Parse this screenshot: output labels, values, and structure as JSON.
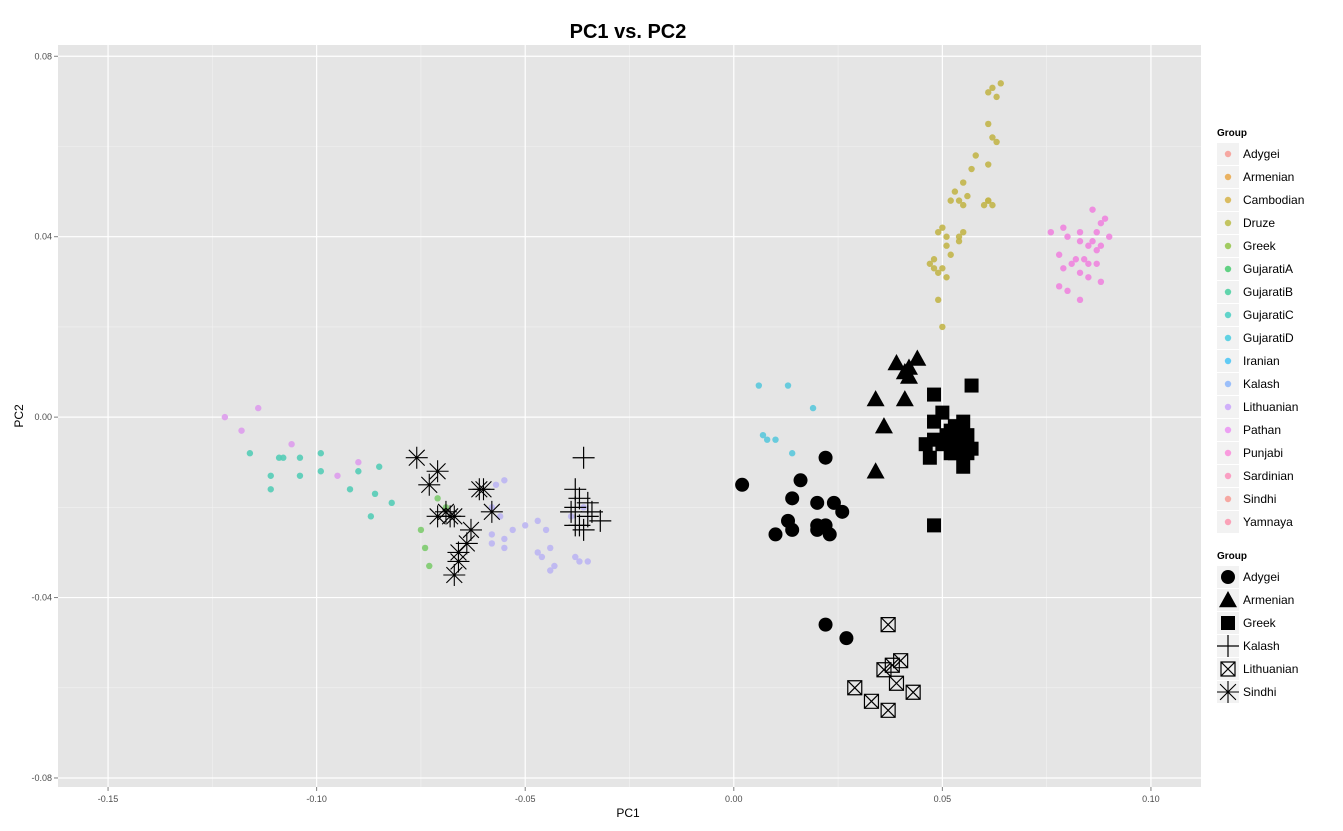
{
  "chart_data": {
    "type": "scatter",
    "title": "PC1 vs. PC2",
    "xlabel": "PC1",
    "ylabel": "PC2",
    "xlim": [
      -0.162,
      0.112
    ],
    "ylim": [
      -0.082,
      0.0825
    ],
    "x_ticks": [
      -0.15,
      -0.1,
      -0.05,
      0.0,
      0.05,
      0.1
    ],
    "x_tick_labels": [
      "-0.15",
      "-0.10",
      "-0.05",
      "0.00",
      "0.05",
      "0.10"
    ],
    "y_ticks": [
      -0.08,
      -0.04,
      0.0,
      0.04,
      0.08
    ],
    "y_tick_labels": [
      "-0.08",
      "-0.04",
      "0.00",
      "0.04",
      "0.08"
    ],
    "grid": true,
    "panel_background": "#e5e5e5",
    "color_legend": {
      "title": "Group",
      "placement": "right",
      "entries": [
        {
          "name": "Adygei",
          "color": "#F8766D"
        },
        {
          "name": "Armenian",
          "color": "#E58700"
        },
        {
          "name": "Cambodian",
          "color": "#C99800"
        },
        {
          "name": "Druze",
          "color": "#A3A500"
        },
        {
          "name": "Greek",
          "color": "#6BB100"
        },
        {
          "name": "GujaratiA",
          "color": "#00BA38"
        },
        {
          "name": "GujaratiB",
          "color": "#00BF7D"
        },
        {
          "name": "GujaratiC",
          "color": "#00C0AF"
        },
        {
          "name": "GujaratiD",
          "color": "#00BCD8"
        },
        {
          "name": "Iranian",
          "color": "#00B0F6"
        },
        {
          "name": "Kalash",
          "color": "#619CFF"
        },
        {
          "name": "Lithuanian",
          "color": "#B983FF"
        },
        {
          "name": "Pathan",
          "color": "#E76BF3"
        },
        {
          "name": "Punjabi",
          "color": "#FD61D1"
        },
        {
          "name": "Sardinian",
          "color": "#FF67A4"
        },
        {
          "name": "Sindhi",
          "color": "#F8766D"
        },
        {
          "name": "Yamnaya",
          "color": "#FF6C91"
        }
      ]
    },
    "shape_legend": {
      "title": "Group",
      "placement": "right",
      "entries": [
        {
          "name": "Adygei",
          "shape": "circle"
        },
        {
          "name": "Armenian",
          "shape": "triangle"
        },
        {
          "name": "Greek",
          "shape": "square"
        },
        {
          "name": "Kalash",
          "shape": "plus"
        },
        {
          "name": "Lithuanian",
          "shape": "boxed-x"
        },
        {
          "name": "Sindhi",
          "shape": "asterisk"
        }
      ]
    },
    "series": [
      {
        "name": "Druze",
        "color": "#C2B54A",
        "marker": "small",
        "x": [
          0.064,
          0.062,
          0.061,
          0.063,
          0.061,
          0.062,
          0.063,
          0.058,
          0.061,
          0.057,
          0.055,
          0.053,
          0.056,
          0.061,
          0.06,
          0.054,
          0.055,
          0.052,
          0.062,
          0.061,
          0.049,
          0.05,
          0.055,
          0.051,
          0.054,
          0.054,
          0.051,
          0.048,
          0.052,
          0.047,
          0.048,
          0.05,
          0.049,
          0.051,
          0.049,
          0.05
        ],
        "y": [
          0.074,
          0.073,
          0.072,
          0.071,
          0.065,
          0.062,
          0.061,
          0.058,
          0.056,
          0.055,
          0.052,
          0.05,
          0.049,
          0.048,
          0.047,
          0.048,
          0.047,
          0.048,
          0.047,
          0.048,
          0.041,
          0.042,
          0.041,
          0.04,
          0.04,
          0.039,
          0.038,
          0.035,
          0.036,
          0.034,
          0.033,
          0.033,
          0.032,
          0.031,
          0.026,
          0.02
        ]
      },
      {
        "name": "Sardinian",
        "color": "#EE84DE",
        "marker": "small",
        "x": [
          0.086,
          0.089,
          0.088,
          0.09,
          0.079,
          0.083,
          0.087,
          0.086,
          0.085,
          0.076,
          0.08,
          0.083,
          0.088,
          0.087,
          0.078,
          0.082,
          0.084,
          0.081,
          0.085,
          0.079,
          0.083,
          0.088,
          0.078,
          0.08,
          0.083,
          0.087,
          0.085
        ],
        "y": [
          0.046,
          0.044,
          0.043,
          0.04,
          0.042,
          0.041,
          0.041,
          0.039,
          0.038,
          0.041,
          0.04,
          0.039,
          0.038,
          0.037,
          0.036,
          0.035,
          0.035,
          0.034,
          0.034,
          0.033,
          0.032,
          0.03,
          0.029,
          0.028,
          0.026,
          0.034,
          0.031
        ]
      },
      {
        "name": "Iranian",
        "color": "#5AC8DC",
        "marker": "small",
        "x": [
          0.006,
          0.013,
          0.019,
          0.007,
          0.008,
          0.01,
          0.014
        ],
        "y": [
          0.007,
          0.007,
          0.002,
          -0.004,
          -0.005,
          -0.005,
          -0.008
        ]
      },
      {
        "name": "Punjabi",
        "color": "#DD9CEC",
        "marker": "small",
        "x": [
          -0.122,
          -0.114,
          -0.118,
          -0.106,
          -0.09,
          -0.095
        ],
        "y": [
          0.0,
          0.002,
          -0.003,
          -0.006,
          -0.01,
          -0.013
        ]
      },
      {
        "name": "GujaratiC",
        "color": "#54CCB6",
        "marker": "small",
        "x": [
          -0.116,
          -0.108,
          -0.104,
          -0.099,
          -0.109,
          -0.111,
          -0.104,
          -0.099,
          -0.111,
          -0.09,
          -0.085,
          -0.092,
          -0.086,
          -0.082,
          -0.087
        ],
        "y": [
          -0.008,
          -0.009,
          -0.009,
          -0.008,
          -0.009,
          -0.016,
          -0.013,
          -0.012,
          -0.013,
          -0.012,
          -0.011,
          -0.016,
          -0.017,
          -0.019,
          -0.022
        ]
      },
      {
        "name": "GujaratiA",
        "color": "#7DCB6E",
        "marker": "small",
        "x": [
          -0.071,
          -0.075,
          -0.074,
          -0.073,
          -0.069
        ],
        "y": [
          -0.018,
          -0.025,
          -0.029,
          -0.033,
          -0.02
        ]
      },
      {
        "name": "Pathan",
        "color": "#BBB5F2",
        "marker": "small",
        "x": [
          -0.057,
          -0.055,
          -0.058,
          -0.056,
          -0.053,
          -0.05,
          -0.047,
          -0.045,
          -0.058,
          -0.055,
          -0.058,
          -0.055,
          -0.047,
          -0.044,
          -0.046,
          -0.043,
          -0.044,
          -0.038,
          -0.037,
          -0.035,
          -0.036,
          -0.039
        ],
        "y": [
          -0.015,
          -0.014,
          -0.02,
          -0.022,
          -0.025,
          -0.024,
          -0.023,
          -0.025,
          -0.026,
          -0.027,
          -0.028,
          -0.029,
          -0.03,
          -0.029,
          -0.031,
          -0.033,
          -0.034,
          -0.031,
          -0.032,
          -0.032,
          -0.02,
          -0.022
        ]
      },
      {
        "name": "Adygei",
        "color": "#000000",
        "marker": "circle",
        "x": [
          0.022,
          0.016,
          0.002,
          0.014,
          0.024,
          0.02,
          0.026,
          0.013,
          0.02,
          0.022,
          0.014,
          0.02,
          0.01,
          0.023,
          0.022,
          0.027
        ],
        "y": [
          -0.009,
          -0.014,
          -0.015,
          -0.018,
          -0.019,
          -0.019,
          -0.021,
          -0.023,
          -0.024,
          -0.024,
          -0.025,
          -0.025,
          -0.026,
          -0.026,
          -0.046,
          -0.049
        ]
      },
      {
        "name": "Armenian",
        "color": "#000000",
        "marker": "triangle",
        "x": [
          0.039,
          0.044,
          0.042,
          0.041,
          0.042,
          0.034,
          0.041,
          0.036,
          0.034
        ],
        "y": [
          0.012,
          0.013,
          0.011,
          0.01,
          0.009,
          0.004,
          0.004,
          -0.002,
          -0.012
        ]
      },
      {
        "name": "Greek",
        "color": "#000000",
        "marker": "square",
        "x": [
          0.057,
          0.048,
          0.05,
          0.048,
          0.055,
          0.053,
          0.052,
          0.051,
          0.056,
          0.048,
          0.053,
          0.055,
          0.046,
          0.05,
          0.057,
          0.053,
          0.056,
          0.052,
          0.047,
          0.055,
          0.048
        ],
        "y": [
          0.007,
          0.005,
          0.001,
          -0.001,
          -0.001,
          -0.002,
          -0.003,
          -0.004,
          -0.004,
          -0.005,
          -0.005,
          -0.006,
          -0.006,
          -0.006,
          -0.007,
          -0.008,
          -0.008,
          -0.008,
          -0.009,
          -0.011,
          -0.024
        ]
      },
      {
        "name": "Kalash",
        "color": "#000000",
        "marker": "plus",
        "x": [
          -0.036,
          -0.038,
          -0.037,
          -0.035,
          -0.038,
          -0.034,
          -0.039,
          -0.035,
          -0.032,
          -0.037,
          -0.038,
          -0.036
        ],
        "y": [
          -0.009,
          -0.016,
          -0.018,
          -0.019,
          -0.02,
          -0.021,
          -0.021,
          -0.022,
          -0.023,
          -0.024,
          -0.024,
          -0.025
        ]
      },
      {
        "name": "Lithuanian",
        "color": "#000000",
        "marker": "boxed-x",
        "x": [
          0.037,
          0.04,
          0.038,
          0.036,
          0.039,
          0.029,
          0.043,
          0.033,
          0.037
        ],
        "y": [
          -0.046,
          -0.054,
          -0.055,
          -0.056,
          -0.059,
          -0.06,
          -0.061,
          -0.063,
          -0.065
        ]
      },
      {
        "name": "Sindhi",
        "color": "#000000",
        "marker": "asterisk",
        "x": [
          -0.076,
          -0.071,
          -0.073,
          -0.061,
          -0.06,
          -0.069,
          -0.071,
          -0.068,
          -0.067,
          -0.058,
          -0.063,
          -0.064,
          -0.066,
          -0.066,
          -0.067
        ],
        "y": [
          -0.009,
          -0.012,
          -0.015,
          -0.016,
          -0.016,
          -0.021,
          -0.022,
          -0.022,
          -0.022,
          -0.021,
          -0.025,
          -0.028,
          -0.03,
          -0.032,
          -0.035
        ]
      }
    ]
  }
}
